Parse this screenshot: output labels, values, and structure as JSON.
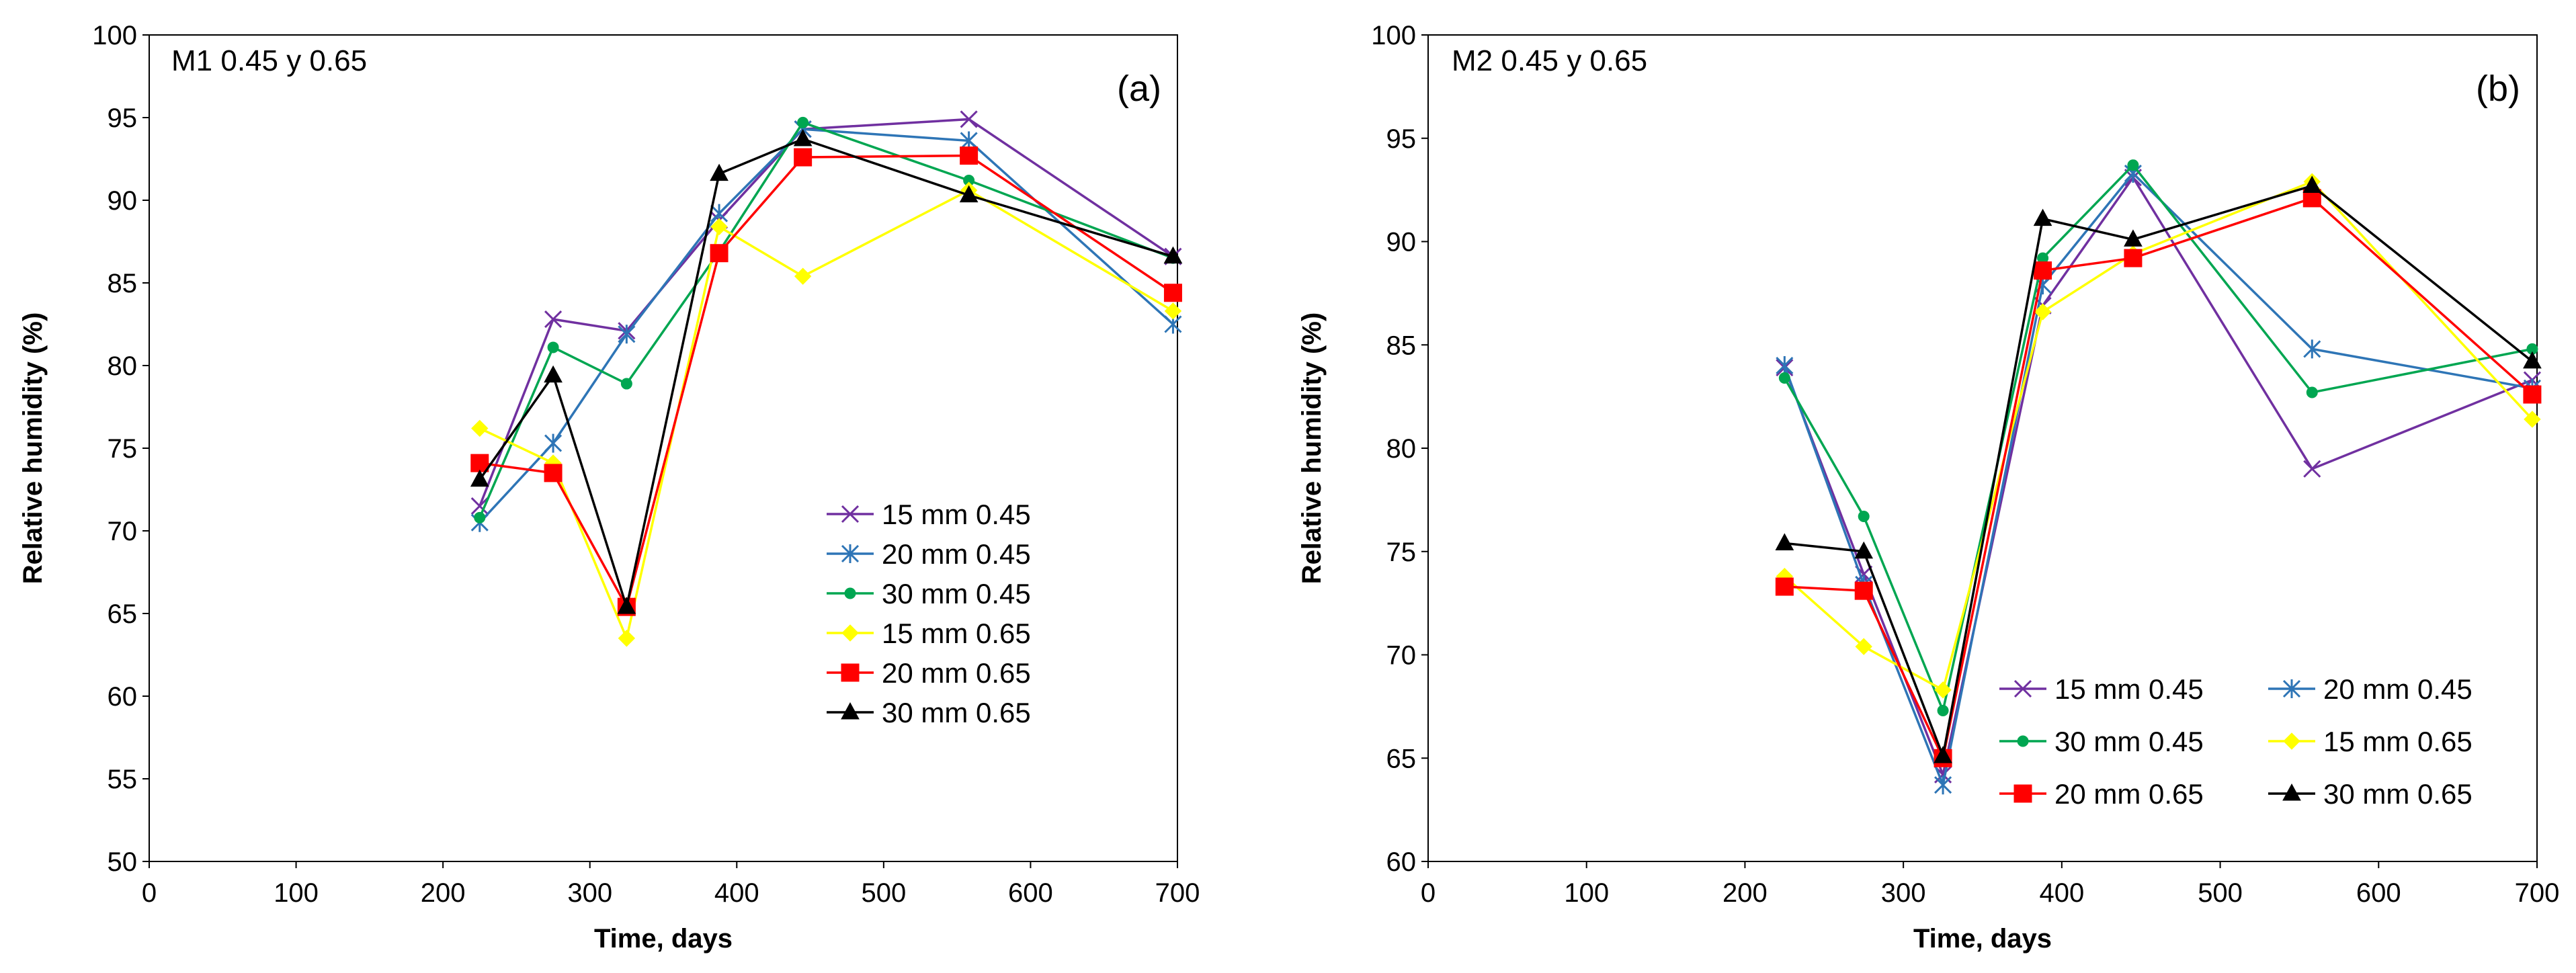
{
  "chart_data": [
    {
      "type": "line",
      "title": "M1 0.45 y 0.65",
      "panel_label": "(a)",
      "xlabel": "Time, days",
      "ylabel": "Relative humidity (%)",
      "xlim": [
        0,
        700
      ],
      "ylim": [
        50,
        100
      ],
      "xticks": [
        0,
        100,
        200,
        300,
        400,
        500,
        600,
        700
      ],
      "yticks": [
        50,
        55,
        60,
        65,
        70,
        75,
        80,
        85,
        90,
        95,
        100
      ],
      "x": [
        225,
        275,
        325,
        388,
        445,
        558,
        697
      ],
      "legend_position": "center-right",
      "legend_columns": 1,
      "series": [
        {
          "name": "15 mm 0.45",
          "color": "#7030A0",
          "marker": "x",
          "values": [
            71.5,
            82.8,
            82.1,
            88.8,
            94.3,
            94.9,
            86.6
          ]
        },
        {
          "name": "20 mm 0.45",
          "color": "#2E75B6",
          "marker": "asterisk",
          "values": [
            70.5,
            75.3,
            81.9,
            89.2,
            94.3,
            93.6,
            82.5
          ]
        },
        {
          "name": "30 mm 0.45",
          "color": "#00A651",
          "marker": "circle",
          "values": [
            70.8,
            81.1,
            78.9,
            86.9,
            94.7,
            91.2,
            86.5
          ]
        },
        {
          "name": "15 mm 0.65",
          "color": "#FFFF00",
          "marker": "diamond",
          "values": [
            76.2,
            74.1,
            63.5,
            88.4,
            85.4,
            90.6,
            83.3
          ]
        },
        {
          "name": "20 mm 0.65",
          "color": "#FF0000",
          "marker": "square",
          "values": [
            74.1,
            73.5,
            65.4,
            86.8,
            92.6,
            92.7,
            84.4
          ]
        },
        {
          "name": "30 mm 0.65",
          "color": "#000000",
          "marker": "triangle",
          "values": [
            73.1,
            79.4,
            65.4,
            91.6,
            93.7,
            90.3,
            86.6
          ]
        }
      ]
    },
    {
      "type": "line",
      "title": "M2 0.45 y 0.65",
      "panel_label": "(b)",
      "xlabel": "Time, days",
      "ylabel": "Relative humidity (%)",
      "xlim": [
        0,
        700
      ],
      "ylim": [
        60,
        100
      ],
      "xticks": [
        0,
        100,
        200,
        300,
        400,
        500,
        600,
        700
      ],
      "yticks": [
        60,
        65,
        70,
        75,
        80,
        85,
        90,
        95,
        100
      ],
      "x": [
        225,
        275,
        325,
        388,
        445,
        558,
        697
      ],
      "legend_position": "bottom-right",
      "legend_columns": 2,
      "series": [
        {
          "name": "15 mm 0.45",
          "color": "#7030A0",
          "marker": "x",
          "values": [
            83.9,
            73.9,
            64.2,
            86.9,
            93.1,
            79.0,
            83.3
          ]
        },
        {
          "name": "20 mm 0.45",
          "color": "#2E75B6",
          "marker": "asterisk",
          "values": [
            84.0,
            73.4,
            63.7,
            87.9,
            93.3,
            84.8,
            82.9
          ]
        },
        {
          "name": "30 mm 0.45",
          "color": "#00A651",
          "marker": "circle",
          "values": [
            83.4,
            76.7,
            67.3,
            89.2,
            93.7,
            82.7,
            84.8
          ]
        },
        {
          "name": "15 mm 0.65",
          "color": "#FFFF00",
          "marker": "diamond",
          "values": [
            73.8,
            70.4,
            68.3,
            86.6,
            89.4,
            92.9,
            81.4
          ]
        },
        {
          "name": "20 mm 0.65",
          "color": "#FF0000",
          "marker": "square",
          "values": [
            73.3,
            73.1,
            65.0,
            88.6,
            89.2,
            92.1,
            82.6
          ]
        },
        {
          "name": "30 mm 0.65",
          "color": "#000000",
          "marker": "triangle",
          "values": [
            75.4,
            75.0,
            65.1,
            91.1,
            90.1,
            92.7,
            84.2
          ]
        }
      ]
    }
  ]
}
